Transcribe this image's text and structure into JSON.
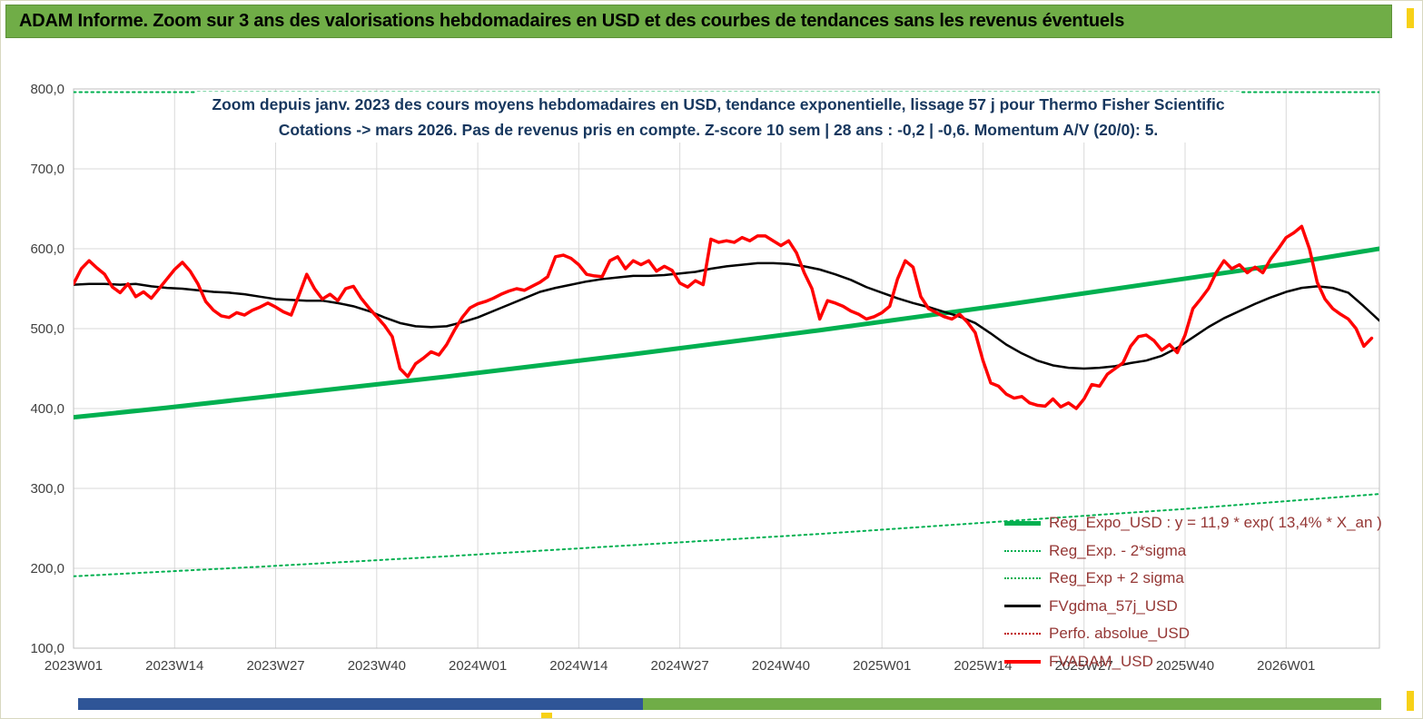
{
  "banner": {
    "title": "ADAM Informe. Zoom sur 3 ans des valorisations hebdomadaires en USD et des courbes de tendances sans les revenus éventuels"
  },
  "palette": {
    "banner_green": "#70AD47",
    "bottom_blue": "#2F5597",
    "bottom_green": "#70AD47",
    "accent_yellow": "#F7D117",
    "title_navy": "#17375E",
    "legend_text": "#953735",
    "grid": "#D9D9D9",
    "reg_green": "#00B050",
    "series_red": "#FF0000",
    "series_black": "#000000",
    "perf_red": "#C00000"
  },
  "chart_data": {
    "type": "line",
    "title_lines": [
      "Zoom depuis janv. 2023 des cours moyens hebdomadaires en USD, tendance exponentielle, lissage 57 j pour Thermo Fisher Scientific",
      "Cotations -> mars 2026. Pas de revenus pris en compte. Z-score 10 sem | 28 ans : -0,2 | -0,6. Momentum A/V (20/0): 5."
    ],
    "ylabel": "",
    "xlabel": "",
    "ylim": [
      100,
      800
    ],
    "yticks": [
      100,
      200,
      300,
      400,
      500,
      600,
      700,
      800
    ],
    "ytick_labels": [
      "100,0",
      "200,0",
      "300,0",
      "400,0",
      "500,0",
      "600,0",
      "700,0",
      "800,0"
    ],
    "xticks_weeks": [
      0,
      13,
      26,
      39,
      52,
      65,
      78,
      91,
      104,
      117,
      130,
      143,
      156
    ],
    "xtick_labels": [
      "2023W01",
      "2023W14",
      "2023W27",
      "2023W40",
      "2024W01",
      "2024W14",
      "2024W27",
      "2024W40",
      "2025W01",
      "2025W14",
      "2025W27",
      "2025W40",
      "2026W01"
    ],
    "weeks_span": 168,
    "grid": true,
    "legend_position": "right-bottom",
    "series": [
      {
        "name": "Reg_Expo_USD",
        "color": "#00B050",
        "dash": "none",
        "width": 5,
        "step": 12,
        "values": [
          389,
          401,
          414,
          427,
          440,
          454,
          468,
          483,
          498,
          514,
          530,
          547,
          564,
          581,
          600
        ]
      },
      {
        "name": "Reg_Exp_minus_2sigma",
        "color": "#00B050",
        "dash": "dot",
        "width": 2,
        "step": 24,
        "values": [
          190,
          202,
          215,
          229,
          243,
          259,
          275,
          293
        ]
      },
      {
        "name": "Reg_Exp_plus_2sigma",
        "color": "#00B050",
        "dash": "dot",
        "width": 2,
        "step": 168,
        "values": [
          796,
          796
        ]
      },
      {
        "name": "FVgdma_57j_USD",
        "color": "#000000",
        "dash": "none",
        "width": 2.5,
        "step": 2,
        "values": [
          555,
          556,
          556,
          555,
          556,
          553,
          551,
          550,
          548,
          546,
          545,
          543,
          540,
          537,
          536,
          535,
          535,
          532,
          528,
          522,
          514,
          507,
          503,
          502,
          503,
          508,
          514,
          522,
          530,
          538,
          546,
          551,
          555,
          559,
          562,
          564,
          566,
          566,
          567,
          569,
          571,
          575,
          578,
          580,
          582,
          582,
          581,
          578,
          574,
          568,
          561,
          552,
          545,
          538,
          532,
          527,
          521,
          515,
          507,
          494,
          480,
          469,
          460,
          454,
          451,
          450,
          451,
          453,
          457,
          460,
          466,
          476,
          489,
          502,
          513,
          522,
          531,
          539,
          546,
          551,
          553,
          551,
          545,
          528,
          510
        ]
      },
      {
        "name": "FVADAM_USD",
        "color": "#FF0000",
        "dash": "none",
        "width": 3.5,
        "step": 1,
        "values": [
          556,
          575,
          585,
          576,
          568,
          552,
          545,
          556,
          540,
          546,
          538,
          550,
          562,
          574,
          583,
          572,
          556,
          534,
          523,
          516,
          514,
          520,
          517,
          523,
          527,
          532,
          527,
          521,
          517,
          542,
          568,
          550,
          537,
          543,
          535,
          550,
          553,
          538,
          526,
          515,
          504,
          490,
          450,
          440,
          456,
          463,
          471,
          467,
          480,
          498,
          514,
          526,
          531,
          534,
          538,
          543,
          547,
          550,
          548,
          553,
          558,
          565,
          590,
          592,
          588,
          580,
          568,
          566,
          565,
          585,
          590,
          575,
          585,
          580,
          585,
          572,
          578,
          573,
          557,
          552,
          560,
          555,
          612,
          608,
          610,
          608,
          614,
          610,
          616,
          616,
          610,
          604,
          610,
          595,
          570,
          550,
          512,
          535,
          532,
          528,
          522,
          518,
          512,
          515,
          520,
          528,
          562,
          585,
          577,
          540,
          525,
          520,
          515,
          512,
          518,
          508,
          495,
          460,
          432,
          428,
          418,
          413,
          415,
          407,
          404,
          403,
          412,
          402,
          407,
          400,
          412,
          430,
          428,
          443,
          450,
          457,
          478,
          490,
          492,
          485,
          473,
          480,
          470,
          492,
          525,
          537,
          550,
          570,
          585,
          575,
          580,
          570,
          577,
          570,
          587,
          600,
          614,
          620,
          628,
          600,
          558,
          537,
          525,
          518,
          512,
          500,
          478,
          488
        ]
      }
    ],
    "legend": [
      {
        "label": "Reg_Expo_USD : y = 11,9 * exp( 13,4% *  X_an )",
        "color": "#00B050",
        "dash": "none",
        "width": 5
      },
      {
        "label": "Reg_Exp. - 2*sigma",
        "color": "#00B050",
        "dash": "dot",
        "width": 2
      },
      {
        "label": "Reg_Exp + 2 sigma",
        "color": "#00B050",
        "dash": "dot",
        "width": 2
      },
      {
        "label": "FVgdma_57j_USD",
        "color": "#000000",
        "dash": "none",
        "width": 3
      },
      {
        "label": "Perfo. absolue_USD",
        "color": "#C00000",
        "dash": "dot",
        "width": 2
      },
      {
        "label": "FVADAM_USD",
        "color": "#FF0000",
        "dash": "none",
        "width": 4
      }
    ]
  }
}
